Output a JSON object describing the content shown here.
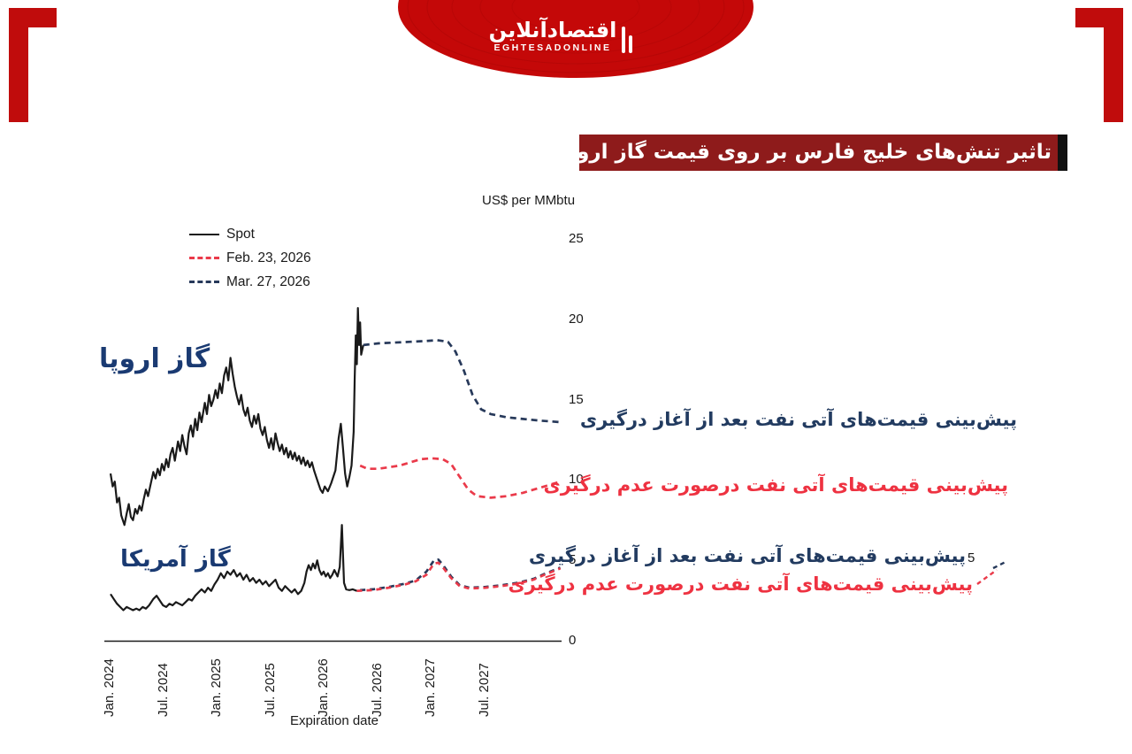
{
  "branding": {
    "logo_fa": "اقتصادآنلاین",
    "logo_en": "EGHTESADONLINE",
    "logo_red": "#c40808",
    "bracket_red": "#c00c0c"
  },
  "title_banner": {
    "text": "تاثیر تنش‌های خلیج فارس بر روی قیمت گاز اروپا و آمریکا",
    "bg": "#8e1b1b",
    "text_color": "#ffffff"
  },
  "annotations": {
    "after_conflict": "پیش‌بینی قیمت‌های آتی نفت بعد از آغاز درگیری",
    "no_conflict": "پیش‌بینی قیمت‌های آتی نفت درصورت عدم درگیری",
    "navy": "#223b60",
    "red": "#ee3241"
  },
  "chart_data": {
    "type": "line",
    "unit_label": "US$ per MMbtu",
    "xlabel": "Expiration date",
    "overlay_tick_label": "5",
    "x_tick_labels": [
      "Jan. 2024",
      "Jul. 2024",
      "Jan. 2025",
      "Jul. 2025",
      "Jan. 2026",
      "Jul. 2026",
      "Jan. 2027",
      "Jul. 2027"
    ],
    "x_tick_years": [
      2024.0,
      2024.5,
      2025.0,
      2025.5,
      2026.0,
      2026.5,
      2027.0,
      2027.5
    ],
    "xlim": [
      2024.0,
      2028.25
    ],
    "ylim": [
      0,
      25
    ],
    "y_ticks": [
      0,
      5,
      10,
      15,
      20,
      25
    ],
    "grid": false,
    "legend_position": "top-left",
    "legend": [
      {
        "label": "Spot",
        "color": "#1a1a1a",
        "dashed": false
      },
      {
        "label": "Feb. 23, 2026",
        "color": "#ea3a4a",
        "dashed": true
      },
      {
        "label": "Mar. 27, 2026",
        "color": "#27395a",
        "dashed": true
      }
    ],
    "group_labels": {
      "europe": "گاز اروپا",
      "america": "گاز آمریکا"
    },
    "series": [
      {
        "name": "europe-spot",
        "legend": "Spot",
        "color": "#1a1a1a",
        "dash": "",
        "width": 2.2,
        "points": [
          [
            2024.0,
            10.4
          ],
          [
            2024.02,
            9.6
          ],
          [
            2024.04,
            9.9
          ],
          [
            2024.06,
            8.6
          ],
          [
            2024.08,
            8.9
          ],
          [
            2024.1,
            7.8
          ],
          [
            2024.13,
            7.2
          ],
          [
            2024.15,
            7.9
          ],
          [
            2024.17,
            8.5
          ],
          [
            2024.19,
            7.7
          ],
          [
            2024.21,
            7.5
          ],
          [
            2024.23,
            8.2
          ],
          [
            2024.25,
            7.9
          ],
          [
            2024.27,
            8.4
          ],
          [
            2024.29,
            8.1
          ],
          [
            2024.31,
            8.8
          ],
          [
            2024.33,
            9.4
          ],
          [
            2024.35,
            9.0
          ],
          [
            2024.38,
            9.9
          ],
          [
            2024.4,
            10.5
          ],
          [
            2024.42,
            10.1
          ],
          [
            2024.44,
            10.7
          ],
          [
            2024.46,
            10.3
          ],
          [
            2024.48,
            11.0
          ],
          [
            2024.5,
            10.6
          ],
          [
            2024.52,
            11.3
          ],
          [
            2024.54,
            10.8
          ],
          [
            2024.56,
            11.6
          ],
          [
            2024.58,
            12.0
          ],
          [
            2024.6,
            11.2
          ],
          [
            2024.63,
            12.4
          ],
          [
            2024.65,
            11.8
          ],
          [
            2024.67,
            12.8
          ],
          [
            2024.69,
            12.1
          ],
          [
            2024.71,
            11.6
          ],
          [
            2024.73,
            12.9
          ],
          [
            2024.75,
            13.4
          ],
          [
            2024.77,
            12.7
          ],
          [
            2024.79,
            13.8
          ],
          [
            2024.81,
            13.1
          ],
          [
            2024.83,
            14.2
          ],
          [
            2024.85,
            13.6
          ],
          [
            2024.88,
            14.8
          ],
          [
            2024.9,
            14.1
          ],
          [
            2024.92,
            15.3
          ],
          [
            2024.94,
            14.6
          ],
          [
            2024.96,
            15.0
          ],
          [
            2024.98,
            15.6
          ],
          [
            2025.0,
            15.1
          ],
          [
            2025.02,
            16.0
          ],
          [
            2025.04,
            15.4
          ],
          [
            2025.06,
            16.5
          ],
          [
            2025.08,
            17.0
          ],
          [
            2025.1,
            16.2
          ],
          [
            2025.12,
            17.6
          ],
          [
            2025.14,
            16.6
          ],
          [
            2025.16,
            15.8
          ],
          [
            2025.18,
            15.2
          ],
          [
            2025.2,
            14.7
          ],
          [
            2025.22,
            15.3
          ],
          [
            2025.24,
            14.4
          ],
          [
            2025.26,
            14.0
          ],
          [
            2025.28,
            14.5
          ],
          [
            2025.3,
            13.7
          ],
          [
            2025.32,
            13.3
          ],
          [
            2025.34,
            14.0
          ],
          [
            2025.36,
            13.5
          ],
          [
            2025.38,
            14.1
          ],
          [
            2025.4,
            13.2
          ],
          [
            2025.42,
            12.8
          ],
          [
            2025.44,
            13.3
          ],
          [
            2025.46,
            12.5
          ],
          [
            2025.48,
            12.0
          ],
          [
            2025.5,
            12.6
          ],
          [
            2025.52,
            11.9
          ],
          [
            2025.54,
            12.9
          ],
          [
            2025.56,
            12.3
          ],
          [
            2025.58,
            11.8
          ],
          [
            2025.6,
            12.2
          ],
          [
            2025.62,
            11.6
          ],
          [
            2025.64,
            12.0
          ],
          [
            2025.66,
            11.4
          ],
          [
            2025.68,
            11.8
          ],
          [
            2025.7,
            11.3
          ],
          [
            2025.72,
            11.7
          ],
          [
            2025.74,
            11.2
          ],
          [
            2025.76,
            11.5
          ],
          [
            2025.78,
            11.0
          ],
          [
            2025.8,
            11.4
          ],
          [
            2025.82,
            10.9
          ],
          [
            2025.84,
            11.2
          ],
          [
            2025.86,
            10.8
          ],
          [
            2025.88,
            11.1
          ],
          [
            2025.9,
            10.6
          ],
          [
            2025.92,
            10.2
          ],
          [
            2025.94,
            9.8
          ],
          [
            2025.96,
            9.4
          ],
          [
            2025.98,
            9.2
          ],
          [
            2026.0,
            9.6
          ],
          [
            2026.03,
            9.3
          ],
          [
            2026.06,
            9.8
          ],
          [
            2026.1,
            10.6
          ],
          [
            2026.13,
            12.6
          ],
          [
            2026.15,
            13.5
          ],
          [
            2026.17,
            12.0
          ],
          [
            2026.19,
            10.4
          ],
          [
            2026.21,
            9.6
          ],
          [
            2026.23,
            10.2
          ],
          [
            2026.25,
            10.9
          ],
          [
            2026.27,
            13.0
          ],
          [
            2026.28,
            16.4
          ],
          [
            2026.29,
            19.0
          ],
          [
            2026.3,
            17.2
          ],
          [
            2026.31,
            20.7
          ],
          [
            2026.32,
            18.4
          ],
          [
            2026.33,
            19.8
          ],
          [
            2026.34,
            17.8
          ],
          [
            2026.36,
            18.4
          ]
        ]
      },
      {
        "name": "america-spot",
        "legend": "Spot",
        "color": "#1a1a1a",
        "dash": "",
        "width": 2.2,
        "points": [
          [
            2024.0,
            2.9
          ],
          [
            2024.03,
            2.6
          ],
          [
            2024.06,
            2.3
          ],
          [
            2024.09,
            2.1
          ],
          [
            2024.12,
            1.9
          ],
          [
            2024.15,
            2.1
          ],
          [
            2024.18,
            2.0
          ],
          [
            2024.21,
            1.9
          ],
          [
            2024.24,
            2.0
          ],
          [
            2024.27,
            1.9
          ],
          [
            2024.3,
            2.1
          ],
          [
            2024.33,
            2.0
          ],
          [
            2024.36,
            2.2
          ],
          [
            2024.4,
            2.6
          ],
          [
            2024.43,
            2.8
          ],
          [
            2024.46,
            2.5
          ],
          [
            2024.49,
            2.2
          ],
          [
            2024.52,
            2.1
          ],
          [
            2024.55,
            2.3
          ],
          [
            2024.58,
            2.2
          ],
          [
            2024.61,
            2.4
          ],
          [
            2024.64,
            2.3
          ],
          [
            2024.67,
            2.2
          ],
          [
            2024.7,
            2.4
          ],
          [
            2024.73,
            2.6
          ],
          [
            2024.76,
            2.5
          ],
          [
            2024.79,
            2.8
          ],
          [
            2024.82,
            3.0
          ],
          [
            2024.85,
            3.2
          ],
          [
            2024.88,
            3.0
          ],
          [
            2024.91,
            3.3
          ],
          [
            2024.94,
            3.1
          ],
          [
            2024.97,
            3.5
          ],
          [
            2025.0,
            3.8
          ],
          [
            2025.03,
            4.2
          ],
          [
            2025.06,
            3.9
          ],
          [
            2025.09,
            4.3
          ],
          [
            2025.12,
            4.1
          ],
          [
            2025.15,
            4.4
          ],
          [
            2025.18,
            4.0
          ],
          [
            2025.21,
            4.2
          ],
          [
            2025.24,
            3.8
          ],
          [
            2025.27,
            4.1
          ],
          [
            2025.3,
            3.7
          ],
          [
            2025.33,
            3.9
          ],
          [
            2025.36,
            3.6
          ],
          [
            2025.39,
            3.8
          ],
          [
            2025.42,
            3.5
          ],
          [
            2025.45,
            3.7
          ],
          [
            2025.48,
            3.4
          ],
          [
            2025.51,
            3.6
          ],
          [
            2025.54,
            3.8
          ],
          [
            2025.57,
            3.3
          ],
          [
            2025.6,
            3.1
          ],
          [
            2025.63,
            3.4
          ],
          [
            2025.66,
            3.2
          ],
          [
            2025.69,
            3.0
          ],
          [
            2025.72,
            3.2
          ],
          [
            2025.75,
            2.9
          ],
          [
            2025.78,
            3.1
          ],
          [
            2025.81,
            3.6
          ],
          [
            2025.83,
            4.3
          ],
          [
            2025.85,
            4.7
          ],
          [
            2025.87,
            4.4
          ],
          [
            2025.89,
            4.8
          ],
          [
            2025.91,
            4.5
          ],
          [
            2025.93,
            5.0
          ],
          [
            2025.95,
            4.4
          ],
          [
            2025.97,
            4.1
          ],
          [
            2025.99,
            4.3
          ],
          [
            2026.01,
            4.0
          ],
          [
            2026.03,
            4.2
          ],
          [
            2026.05,
            3.9
          ],
          [
            2026.07,
            4.1
          ],
          [
            2026.09,
            4.4
          ],
          [
            2026.12,
            4.0
          ],
          [
            2026.14,
            4.6
          ],
          [
            2026.16,
            7.2
          ],
          [
            2026.18,
            3.6
          ],
          [
            2026.2,
            3.2
          ],
          [
            2026.23,
            3.15
          ],
          [
            2026.26,
            3.2
          ],
          [
            2026.3,
            3.1
          ]
        ]
      },
      {
        "name": "europe-future-mar-27-2026",
        "legend": "Mar. 27, 2026",
        "color": "#27395a",
        "dash": "7 5",
        "width": 2.7,
        "points": [
          [
            2026.36,
            18.4
          ],
          [
            2026.5,
            18.5
          ],
          [
            2026.65,
            18.55
          ],
          [
            2026.8,
            18.6
          ],
          [
            2026.95,
            18.65
          ],
          [
            2027.05,
            18.7
          ],
          [
            2027.15,
            18.6
          ],
          [
            2027.22,
            18.0
          ],
          [
            2027.3,
            16.8
          ],
          [
            2027.38,
            15.3
          ],
          [
            2027.46,
            14.4
          ],
          [
            2027.55,
            14.1
          ],
          [
            2027.7,
            13.9
          ],
          [
            2027.85,
            13.8
          ],
          [
            2028.0,
            13.7
          ],
          [
            2028.2,
            13.6
          ]
        ]
      },
      {
        "name": "america-future-mar-27-2026",
        "legend": "Mar. 27, 2026",
        "color": "#27395a",
        "dash": "6 5",
        "width": 2.7,
        "points": [
          [
            2026.33,
            3.15
          ],
          [
            2026.45,
            3.2
          ],
          [
            2026.6,
            3.35
          ],
          [
            2026.75,
            3.55
          ],
          [
            2026.85,
            3.75
          ],
          [
            2026.95,
            4.3
          ],
          [
            2027.02,
            5.0
          ],
          [
            2027.06,
            5.05
          ],
          [
            2027.1,
            4.75
          ],
          [
            2027.18,
            4.0
          ],
          [
            2027.26,
            3.45
          ],
          [
            2027.35,
            3.3
          ],
          [
            2027.5,
            3.35
          ],
          [
            2027.65,
            3.45
          ],
          [
            2027.8,
            3.6
          ],
          [
            2027.95,
            3.85
          ],
          [
            2028.05,
            4.15
          ],
          [
            2028.2,
            4.55
          ]
        ]
      },
      {
        "name": "europe-future-feb-23-2026",
        "legend": "Feb. 23, 2026",
        "color": "#ea3a4a",
        "dash": "7 5",
        "width": 2.7,
        "points": [
          [
            2026.33,
            10.9
          ],
          [
            2026.4,
            10.7
          ],
          [
            2026.5,
            10.7
          ],
          [
            2026.6,
            10.8
          ],
          [
            2026.7,
            10.9
          ],
          [
            2026.8,
            11.1
          ],
          [
            2026.9,
            11.3
          ],
          [
            2027.0,
            11.35
          ],
          [
            2027.1,
            11.3
          ],
          [
            2027.18,
            11.0
          ],
          [
            2027.26,
            10.2
          ],
          [
            2027.34,
            9.4
          ],
          [
            2027.42,
            9.0
          ],
          [
            2027.55,
            8.9
          ],
          [
            2027.7,
            9.0
          ],
          [
            2027.85,
            9.2
          ],
          [
            2028.0,
            9.5
          ],
          [
            2028.2,
            9.9
          ]
        ]
      },
      {
        "name": "america-future-feb-23-2026",
        "legend": "Feb. 23, 2026",
        "color": "#ea3a4a",
        "dash": "6 5",
        "width": 2.7,
        "points": [
          [
            2026.3,
            3.1
          ],
          [
            2026.45,
            3.15
          ],
          [
            2026.6,
            3.3
          ],
          [
            2026.75,
            3.5
          ],
          [
            2026.85,
            3.7
          ],
          [
            2026.95,
            4.1
          ],
          [
            2027.02,
            4.8
          ],
          [
            2027.06,
            4.85
          ],
          [
            2027.1,
            4.6
          ],
          [
            2027.18,
            3.9
          ],
          [
            2027.26,
            3.4
          ],
          [
            2027.35,
            3.25
          ],
          [
            2027.5,
            3.3
          ],
          [
            2027.65,
            3.4
          ],
          [
            2027.8,
            3.55
          ],
          [
            2027.95,
            3.8
          ],
          [
            2028.05,
            4.1
          ],
          [
            2028.2,
            4.5
          ]
        ]
      }
    ]
  }
}
